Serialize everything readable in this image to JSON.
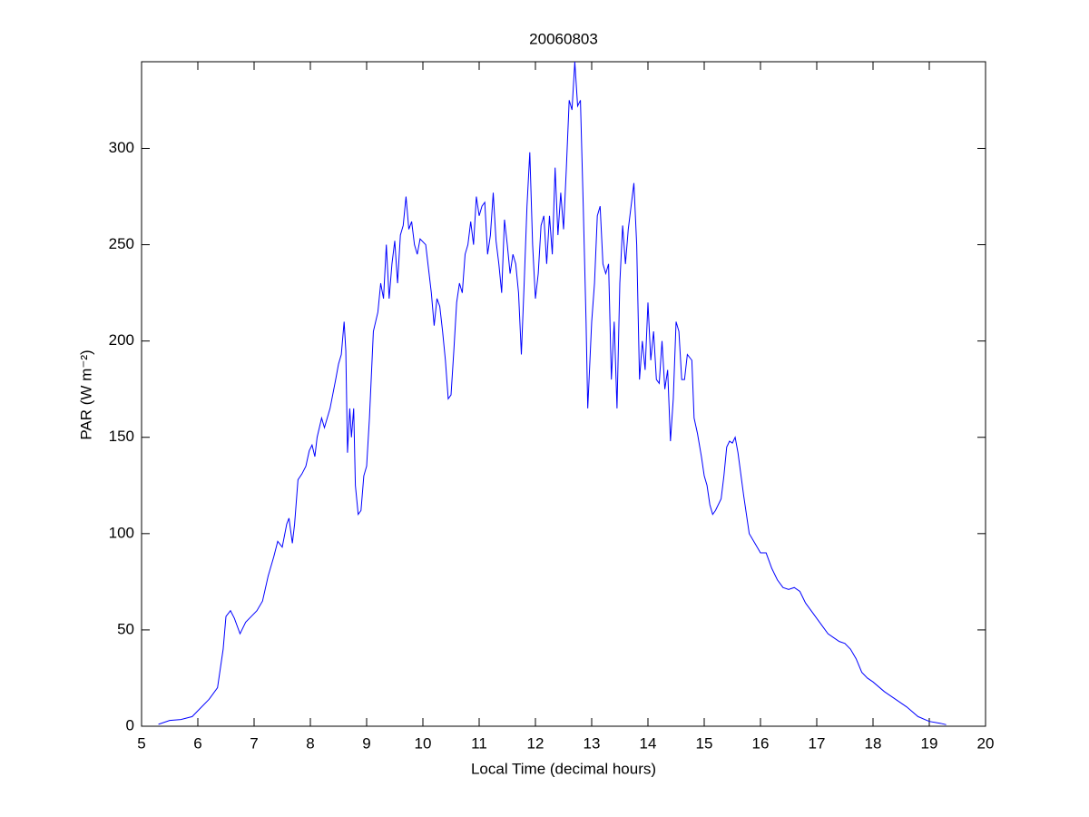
{
  "chart_data": {
    "type": "line",
    "title": "20060803",
    "xlabel": "Local Time (decimal hours)",
    "ylabel": "PAR (W m⁻²)",
    "color": "#0000ff",
    "xlim": [
      5,
      20
    ],
    "xticks": [
      5,
      6,
      7,
      8,
      9,
      10,
      11,
      12,
      13,
      14,
      15,
      16,
      17,
      18,
      19,
      20
    ],
    "ylim": [
      0,
      345
    ],
    "yticks": [
      0,
      50,
      100,
      150,
      200,
      250,
      300
    ],
    "x": [
      5.3,
      5.5,
      5.7,
      5.9,
      6.0,
      6.2,
      6.35,
      6.45,
      6.5,
      6.58,
      6.65,
      6.75,
      6.85,
      6.95,
      7.05,
      7.15,
      7.25,
      7.35,
      7.42,
      7.5,
      7.58,
      7.62,
      7.68,
      7.72,
      7.78,
      7.85,
      7.92,
      7.98,
      8.03,
      8.08,
      8.12,
      8.2,
      8.25,
      8.3,
      8.35,
      8.45,
      8.5,
      8.55,
      8.6,
      8.63,
      8.66,
      8.7,
      8.73,
      8.77,
      8.8,
      8.85,
      8.9,
      8.95,
      9.0,
      9.05,
      9.12,
      9.2,
      9.25,
      9.3,
      9.35,
      9.4,
      9.45,
      9.5,
      9.55,
      9.6,
      9.65,
      9.7,
      9.75,
      9.8,
      9.85,
      9.9,
      9.95,
      10.05,
      10.15,
      10.2,
      10.25,
      10.3,
      10.35,
      10.4,
      10.45,
      10.5,
      10.55,
      10.6,
      10.65,
      10.7,
      10.75,
      10.8,
      10.85,
      10.9,
      10.95,
      11.0,
      11.05,
      11.1,
      11.15,
      11.2,
      11.25,
      11.3,
      11.35,
      11.4,
      11.45,
      11.5,
      11.55,
      11.6,
      11.65,
      11.7,
      11.75,
      11.8,
      11.85,
      11.9,
      11.95,
      12.0,
      12.05,
      12.1,
      12.15,
      12.2,
      12.25,
      12.3,
      12.35,
      12.4,
      12.45,
      12.5,
      12.55,
      12.6,
      12.65,
      12.7,
      12.75,
      12.8,
      12.85,
      12.9,
      12.93,
      13.0,
      13.05,
      13.1,
      13.15,
      13.2,
      13.25,
      13.3,
      13.35,
      13.4,
      13.45,
      13.5,
      13.55,
      13.6,
      13.65,
      13.7,
      13.75,
      13.8,
      13.85,
      13.9,
      13.95,
      14.0,
      14.05,
      14.1,
      14.15,
      14.2,
      14.25,
      14.3,
      14.35,
      14.4,
      14.45,
      14.5,
      14.55,
      14.6,
      14.65,
      14.7,
      14.78,
      14.82,
      14.88,
      14.95,
      15.0,
      15.05,
      15.1,
      15.15,
      15.2,
      15.3,
      15.35,
      15.4,
      15.45,
      15.5,
      15.55,
      15.6,
      15.7,
      15.8,
      15.9,
      16.0,
      16.1,
      16.2,
      16.3,
      16.4,
      16.5,
      16.6,
      16.7,
      16.8,
      16.9,
      17.0,
      17.1,
      17.2,
      17.3,
      17.4,
      17.5,
      17.6,
      17.7,
      17.8,
      17.9,
      18.0,
      18.2,
      18.4,
      18.6,
      18.8,
      19.0,
      19.2,
      19.3
    ],
    "values": [
      1,
      3,
      3.5,
      5,
      8,
      14,
      20,
      40,
      57,
      60,
      56,
      48,
      54,
      57,
      60,
      65,
      78,
      88,
      96,
      93,
      105,
      108,
      95,
      105,
      128,
      131,
      135,
      143,
      146,
      140,
      150,
      160,
      155,
      160,
      165,
      180,
      188,
      193,
      210,
      195,
      142,
      165,
      150,
      165,
      125,
      110,
      112,
      130,
      135,
      160,
      205,
      215,
      230,
      222,
      250,
      222,
      240,
      252,
      230,
      255,
      260,
      275,
      258,
      262,
      250,
      245,
      253,
      250,
      225,
      208,
      222,
      218,
      205,
      190,
      170,
      172,
      195,
      220,
      230,
      225,
      245,
      250,
      262,
      250,
      275,
      265,
      270,
      272,
      245,
      255,
      277,
      252,
      240,
      225,
      263,
      250,
      235,
      245,
      240,
      225,
      193,
      230,
      270,
      298,
      250,
      222,
      235,
      260,
      265,
      240,
      265,
      245,
      290,
      255,
      277,
      258,
      290,
      325,
      320,
      345,
      322,
      325,
      270,
      210,
      165,
      210,
      230,
      265,
      270,
      240,
      235,
      240,
      180,
      210,
      165,
      230,
      260,
      240,
      258,
      270,
      282,
      250,
      180,
      200,
      185,
      220,
      190,
      205,
      180,
      178,
      200,
      175,
      185,
      148,
      170,
      210,
      205,
      180,
      180,
      193,
      190,
      160,
      152,
      140,
      130,
      125,
      115,
      110,
      112,
      118,
      130,
      145,
      148,
      147,
      150,
      142,
      120,
      100,
      95,
      90,
      90,
      82,
      76,
      72,
      71,
      72,
      70,
      64,
      60,
      56,
      52,
      48,
      46,
      44,
      43,
      40,
      35,
      28,
      25,
      23,
      18,
      14,
      10,
      5,
      2.5,
      1.5,
      0.8
    ]
  }
}
